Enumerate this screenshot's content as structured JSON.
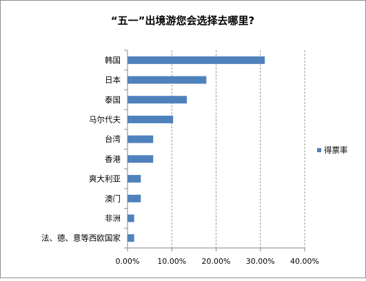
{
  "chart_data": {
    "type": "bar",
    "orientation": "horizontal",
    "title": "“五一”出境游您会选择去哪里?",
    "categories": [
      "韩国",
      "日本",
      "泰国",
      "马尔代夫",
      "台湾",
      "香港",
      "爽大利亚",
      "澳门",
      "非洲",
      "法、德、意等西欧国家"
    ],
    "series": [
      {
        "name": "得票率",
        "values": [
          0.31,
          0.178,
          0.134,
          0.103,
          0.058,
          0.058,
          0.03,
          0.03,
          0.015,
          0.015
        ],
        "color": "#4f81bd"
      }
    ],
    "xlim": [
      0,
      0.4
    ],
    "x_ticks": [
      "0.00%",
      "10.00%",
      "20.00%",
      "30.00%",
      "40.00%"
    ],
    "grid": "vertical-dashed",
    "legend_position": "right"
  }
}
